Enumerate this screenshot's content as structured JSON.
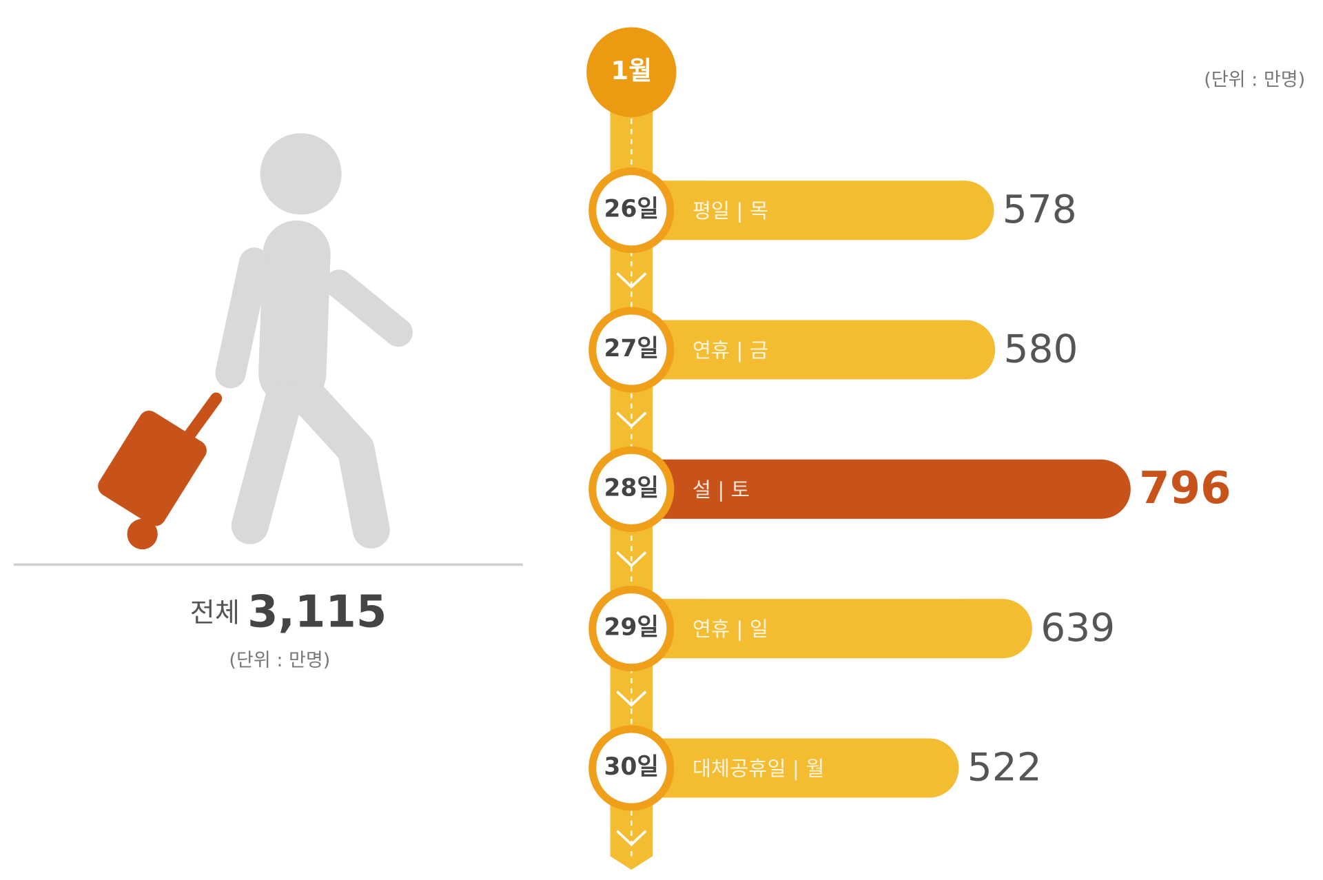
{
  "total": {
    "label": "전체",
    "value": 3115,
    "value_label": "3,115"
  },
  "chart_data": {
    "type": "bar",
    "orientation": "horizontal",
    "month_label": "1월",
    "unit": "(단위 : 만명)",
    "categories": [
      "26일",
      "27일",
      "28일",
      "29일",
      "30일"
    ],
    "sublabels": [
      "평일 | 목",
      "연휴 | 금",
      "설 | 토",
      "연휴 | 일",
      "대체공휴일 | 월"
    ],
    "values": [
      578,
      580,
      796,
      639,
      522
    ],
    "color": "#f4bd31",
    "highlight_color": "#c8531a",
    "highlight_index": 2
  }
}
